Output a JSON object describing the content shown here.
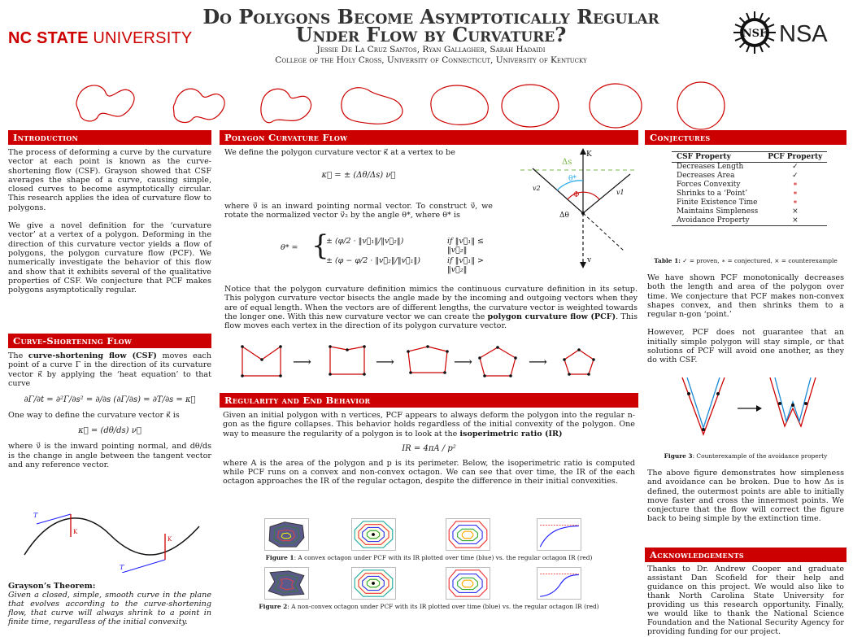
{
  "header": {
    "ncsu_bold": "NC STATE",
    "ncsu_rest": " UNIVERSITY",
    "title_line1": "Do Polygons Become Asymptotically Regular",
    "title_line2": "Under Flow by Curvature?",
    "authors": "Jessie De La Cruz Santos, Ryan Gallagher, Sarah Hadaidi",
    "affiliations": "College of the Holy Cross, University of Connecticut, University of Kentucky",
    "nsf_text": "NSF",
    "nsa_text": "NSA"
  },
  "colors": {
    "accent": "#cc0000",
    "blue": "#1a1aff",
    "green": "#7ab648",
    "sky": "#1ea7e8"
  },
  "introduction": {
    "heading": "Introduction",
    "p1": "The process of deforming a curve by the curvature vector at each point is known as the curve-shortening flow (CSF). Grayson showed that CSF averages the shape of a curve, causing simple, closed curves to become asymptotically circular. This research applies the idea of curvature flow to polygons.",
    "p2": "We give a novel definition for the ‘curvature vector’ at a vertex of a polygon. Deforming in the direction of this curvature vector yields a flow of polygons, the polygon curvature flow (PCF). We numerically investigate the behavior of this flow and show that it exhibits several of the qualitative properties of CSF. We conjecture that PCF makes polygons asymptotically regular."
  },
  "csf": {
    "heading": "Curve-Shortening Flow",
    "p1_pre": "The ",
    "p1_bold": "curve-shortening flow (CSF)",
    "p1_post": " moves each point of a curve Γ in the direction of its curvature vector κ⃗ by applying the ‘heat equation’ to that curve",
    "eq1": "∂Γ/∂t = ∂²Γ/∂s² = ∂/∂s (∂Γ/∂s) = ∂T/∂s = κ⃗",
    "p2": "One way to define the curvature vector κ⃗ is",
    "eq2": "κ⃗ = (dθ/ds) ν⃗",
    "p3": "where ν⃗ is the inward pointing normal, and dθ/ds is the change in angle between the tangent vector and any reference vector.",
    "fig_T": "T",
    "fig_K": "K",
    "theorem_title": "Grayson’s Theorem:",
    "theorem_text": "Given a closed, simple, smooth curve in the plane that evolves according to the curve-shortening flow, that curve will always shrink to a point in finite time, regardless of the initial convexity."
  },
  "pcf": {
    "heading": "Polygon Curvature Flow",
    "p1": "We define the polygon curvature vector κ⃗ at a vertex to be",
    "eq1": "κ⃗ = ± (Δθ/Δs) ν⃗",
    "p2": "where ν⃗ is an inward pointing normal vector. To construct ν⃗, we rotate the normalized vector v⃗₂ by the angle θ*, where θ* is",
    "eq2_lhs": "θ* =",
    "eq2_case1": "± (φ/2 · ‖v⃗₁‖/‖v⃗₂‖)",
    "eq2_cond1": "if ‖v⃗₁‖ ≤ ‖v⃗₂‖",
    "eq2_case2": "± (φ − φ/2 · ‖v⃗₂‖/‖v⃗₁‖)",
    "eq2_cond2": "if ‖v⃗₁‖ > ‖v⃗₂‖",
    "p3_pre": "Notice that the polygon curvature definition mimics the continuous curvature definition in its setup. This polygon curvature vector bisects the angle made by the incoming and outgoing vectors when they are of equal length. When the vectors are of different lengths, the curvature vector is weighted towards the longer one. With this new curvature vector we can create the ",
    "p3_bold": "polygon curvature flow (PCF)",
    "p3_post": ". This flow moves each vertex in the direction of its polygon curvature vector.",
    "diag_ds": "Δs",
    "diag_K": "K",
    "diag_theta": "θ*",
    "diag_phi": "Φ",
    "diag_dtheta": "Δθ",
    "diag_v1": "v1",
    "diag_v2": "v2",
    "diag_nu": "v",
    "arrow": "⟶"
  },
  "regularity": {
    "heading": "Regularity and End Behavior",
    "p1_pre": "Given an initial polygon with n vertices, PCF appears to always deform the polygon into the regular n-gon as the figure collapses. This behavior holds regardless of the initial convexity of the polygon. One way to measure the regularity of a polygon is to look at the ",
    "p1_bold": "isoperimetric ratio (IR)",
    "eq": "IR = 4πA / p²",
    "p2": "where A is the area of the polygon and p is its perimeter. Below, the isoperimetric ratio is computed while PCF runs on a convex and non-convex octagon. We can see that over time, the IR of the each octagon approaches the IR of the regular octagon, despite the difference in their initial convexities.",
    "fig1_label": "Figure 1",
    "fig1_caption": ": A convex octagon under PCF with its IR plotted over time (blue) vs. the regular octagon IR (red)",
    "fig2_label": "Figure 2",
    "fig2_caption": ": A non-convex octagon under PCF with its IR plotted over time (blue) vs. the regular octagon IR (red)"
  },
  "conjectures": {
    "heading": "Conjectures",
    "col1": "CSF Property",
    "col2": "PCF Property",
    "rows": [
      {
        "prop": "Decreases Length",
        "mark": "✓",
        "kind": "proven"
      },
      {
        "prop": "Decreases Area",
        "mark": "✓",
        "kind": "proven"
      },
      {
        "prop": "Forces Convexity",
        "mark": "∗",
        "kind": "conj"
      },
      {
        "prop": "Shrinks to a ‘Point’",
        "mark": "∗",
        "kind": "conj"
      },
      {
        "prop": "Finite Existence Time",
        "mark": "∗",
        "kind": "conj"
      },
      {
        "prop": "Maintains Simpleness",
        "mark": "×",
        "kind": "counter"
      },
      {
        "prop": "Avoidance Property",
        "mark": "×",
        "kind": "counter"
      }
    ],
    "table_label": "Table 1:",
    "table_caption": " ✓ = proven, ∗ = conjectured, × = counterexample",
    "p1": "We have shown PCF monotonically decreases both the length and area of the polygon over time. We conjecture that PCF makes non-convex shapes convex, and then shrinks them to a regular n-gon ‘point.’",
    "p2": "However, PCF does not guarantee that an initially simple polygon will stay simple, or that solutions of PCF will avoid one another, as they do with CSF.",
    "fig3_label": "Figure 3",
    "fig3_caption": ": Counterexample of the avoidance property",
    "p3": "The above figure demonstrates how simpleness and avoidance can be broken. Due to how Δs is defined, the outermost points are able to initially move faster and cross the innermost points. We conjecture that the flow will correct the figure back to being simple by the extinction time."
  },
  "acknowledgements": {
    "heading": "Acknowledgements",
    "text": "Thanks to Dr. Andrew Cooper and graduate assistant Dan Scofield for their help and guidance on this project. We would also like to thank North Carolina State University for providing us this research opportunity. Finally, we would like to thank the National Science Foundation and the National Security Agency for providing funding for our project."
  }
}
